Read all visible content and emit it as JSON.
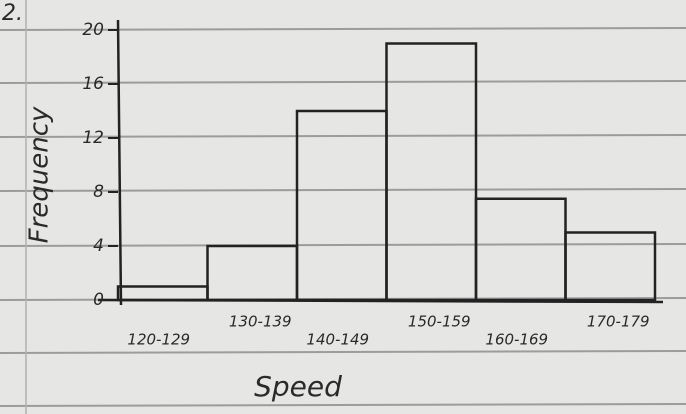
{
  "label": "2.",
  "chart_data": {
    "type": "bar",
    "x_label": "Speed",
    "y_label": "Frequency",
    "categories": [
      "120-129",
      "130-139",
      "140-149",
      "150-159",
      "160-169",
      "170-179"
    ],
    "values": [
      1,
      4,
      14,
      19,
      7.5,
      5
    ],
    "color": "none",
    "ylim": [
      0,
      20
    ],
    "yticks": [
      0,
      4,
      8,
      12,
      16,
      20
    ],
    "grid": false
  }
}
